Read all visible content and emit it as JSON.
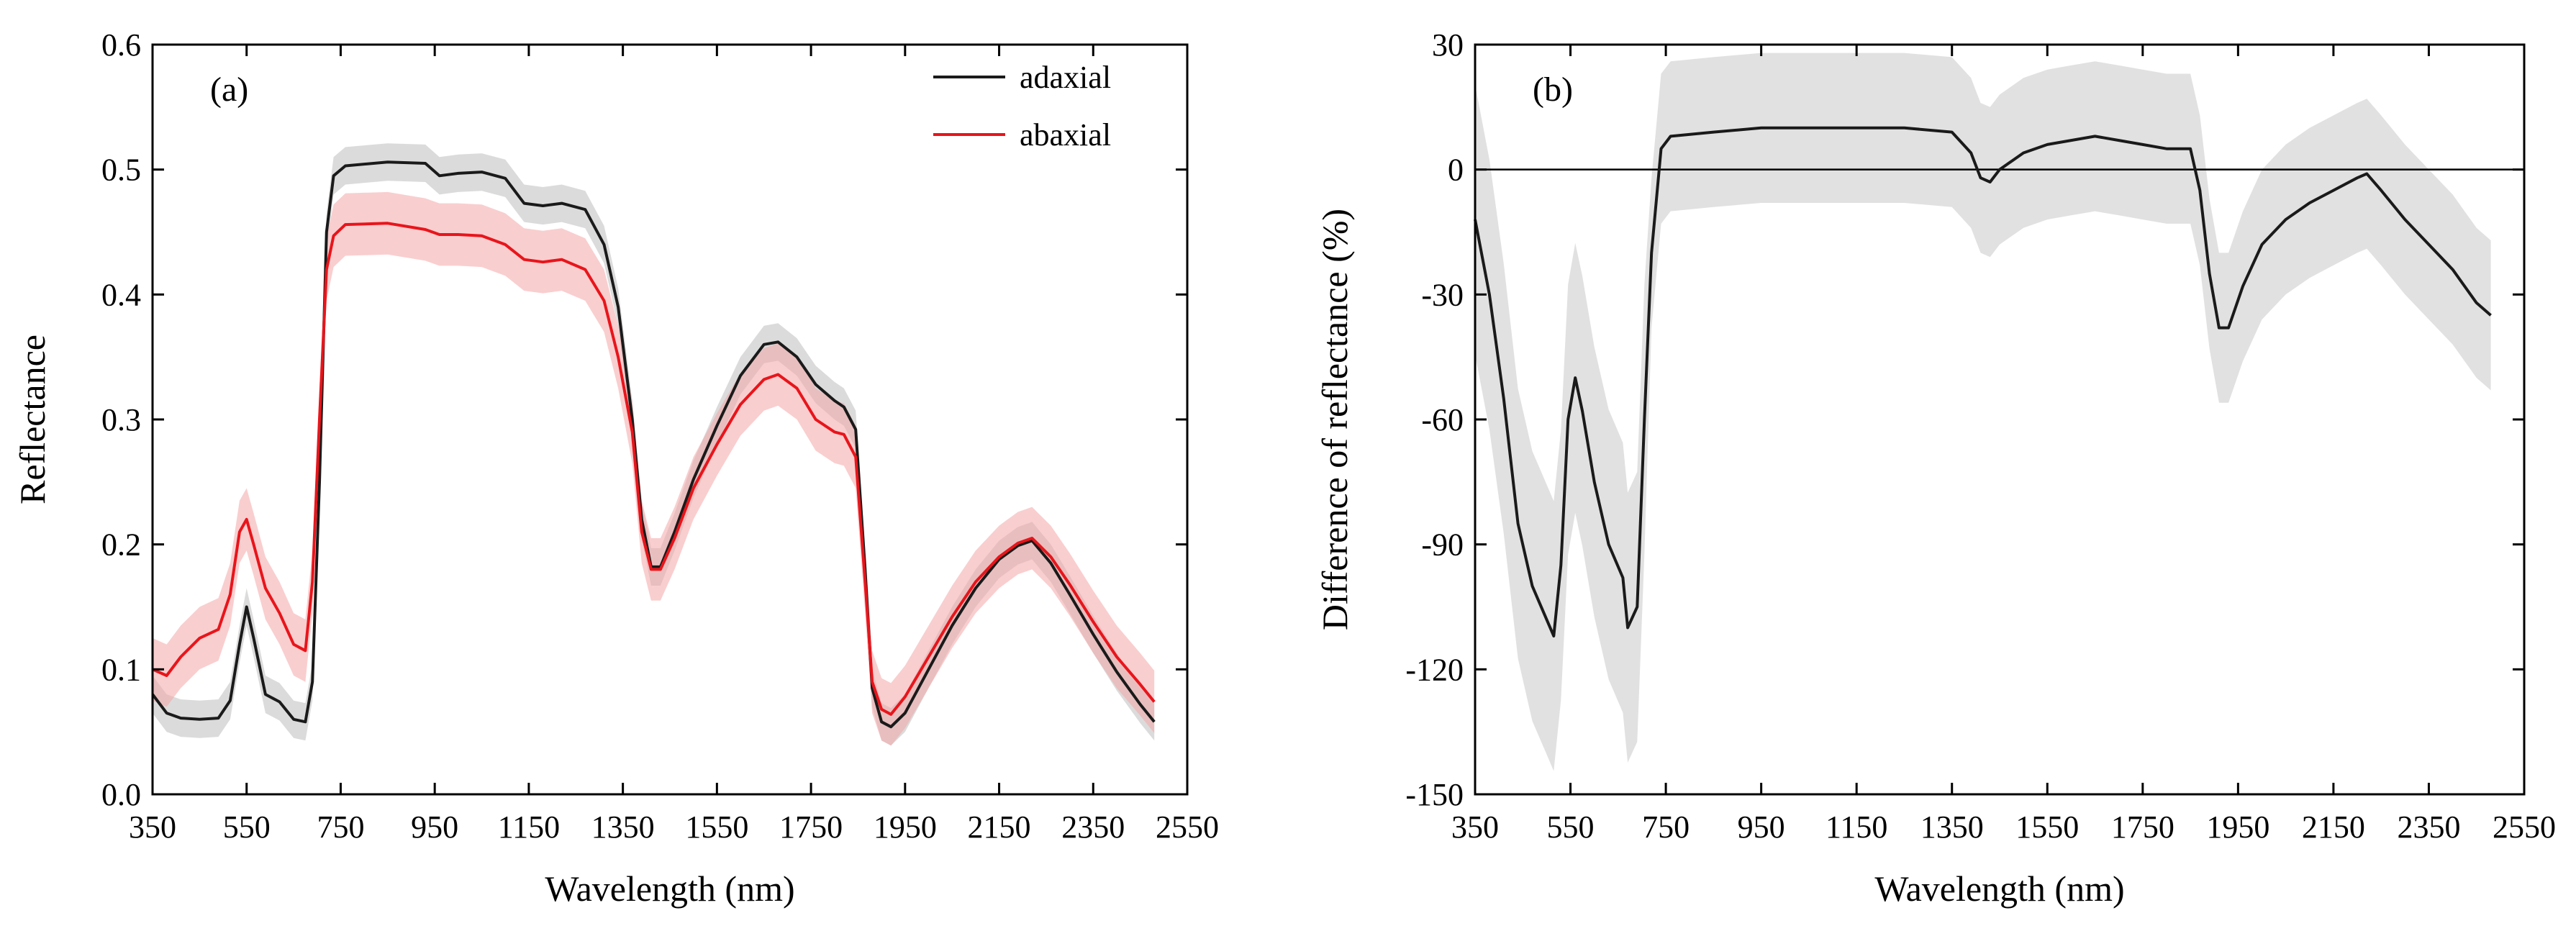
{
  "chart_data": [
    {
      "type": "line",
      "panel_label": "(a)",
      "xlabel": "Wavelength (nm)",
      "ylabel": "Reflectance",
      "xlim": [
        350,
        2550
      ],
      "ylim": [
        0.0,
        0.6
      ],
      "xticks": [
        350,
        550,
        750,
        950,
        1150,
        1350,
        1550,
        1750,
        1950,
        2150,
        2350,
        2550
      ],
      "yticks": [
        "0.0",
        "0.1",
        "0.2",
        "0.3",
        "0.4",
        "0.5",
        "0.6"
      ],
      "legend_position": "top-right",
      "series": [
        {
          "name": "adaxial",
          "color": "#1a1a1a",
          "band_color": "#bdbdbd",
          "points": [
            [
              350,
              0.08
            ],
            [
              380,
              0.065
            ],
            [
              410,
              0.061
            ],
            [
              450,
              0.06
            ],
            [
              490,
              0.061
            ],
            [
              515,
              0.075
            ],
            [
              535,
              0.12
            ],
            [
              550,
              0.15
            ],
            [
              565,
              0.125
            ],
            [
              590,
              0.08
            ],
            [
              620,
              0.074
            ],
            [
              650,
              0.06
            ],
            [
              675,
              0.058
            ],
            [
              690,
              0.09
            ],
            [
              705,
              0.25
            ],
            [
              720,
              0.45
            ],
            [
              735,
              0.495
            ],
            [
              760,
              0.503
            ],
            [
              850,
              0.506
            ],
            [
              930,
              0.505
            ],
            [
              960,
              0.495
            ],
            [
              1000,
              0.497
            ],
            [
              1050,
              0.498
            ],
            [
              1100,
              0.493
            ],
            [
              1140,
              0.473
            ],
            [
              1180,
              0.471
            ],
            [
              1220,
              0.473
            ],
            [
              1270,
              0.468
            ],
            [
              1310,
              0.44
            ],
            [
              1340,
              0.39
            ],
            [
              1370,
              0.3
            ],
            [
              1390,
              0.22
            ],
            [
              1410,
              0.182
            ],
            [
              1430,
              0.182
            ],
            [
              1460,
              0.21
            ],
            [
              1500,
              0.252
            ],
            [
              1550,
              0.295
            ],
            [
              1600,
              0.335
            ],
            [
              1650,
              0.36
            ],
            [
              1680,
              0.362
            ],
            [
              1720,
              0.35
            ],
            [
              1760,
              0.328
            ],
            [
              1800,
              0.315
            ],
            [
              1820,
              0.31
            ],
            [
              1845,
              0.292
            ],
            [
              1865,
              0.18
            ],
            [
              1880,
              0.085
            ],
            [
              1900,
              0.058
            ],
            [
              1920,
              0.054
            ],
            [
              1950,
              0.065
            ],
            [
              2000,
              0.1
            ],
            [
              2050,
              0.135
            ],
            [
              2100,
              0.165
            ],
            [
              2150,
              0.188
            ],
            [
              2190,
              0.199
            ],
            [
              2220,
              0.203
            ],
            [
              2260,
              0.185
            ],
            [
              2300,
              0.16
            ],
            [
              2350,
              0.128
            ],
            [
              2400,
              0.098
            ],
            [
              2450,
              0.072
            ],
            [
              2480,
              0.058
            ]
          ],
          "band": [
            0.015,
            0.012
          ]
        },
        {
          "name": "abaxial",
          "color": "#e8151b",
          "band_color": "#f4a6a8",
          "points": [
            [
              350,
              0.1
            ],
            [
              380,
              0.095
            ],
            [
              410,
              0.11
            ],
            [
              450,
              0.125
            ],
            [
              490,
              0.132
            ],
            [
              515,
              0.16
            ],
            [
              535,
              0.21
            ],
            [
              550,
              0.22
            ],
            [
              565,
              0.2
            ],
            [
              590,
              0.165
            ],
            [
              620,
              0.145
            ],
            [
              650,
              0.12
            ],
            [
              675,
              0.115
            ],
            [
              690,
              0.17
            ],
            [
              705,
              0.3
            ],
            [
              720,
              0.42
            ],
            [
              735,
              0.447
            ],
            [
              760,
              0.456
            ],
            [
              850,
              0.457
            ],
            [
              930,
              0.452
            ],
            [
              960,
              0.448
            ],
            [
              1000,
              0.448
            ],
            [
              1050,
              0.447
            ],
            [
              1100,
              0.44
            ],
            [
              1140,
              0.428
            ],
            [
              1180,
              0.426
            ],
            [
              1220,
              0.428
            ],
            [
              1270,
              0.42
            ],
            [
              1310,
              0.395
            ],
            [
              1340,
              0.35
            ],
            [
              1370,
              0.29
            ],
            [
              1390,
              0.21
            ],
            [
              1410,
              0.18
            ],
            [
              1430,
              0.18
            ],
            [
              1460,
              0.205
            ],
            [
              1500,
              0.245
            ],
            [
              1550,
              0.28
            ],
            [
              1600,
              0.312
            ],
            [
              1650,
              0.332
            ],
            [
              1680,
              0.336
            ],
            [
              1720,
              0.325
            ],
            [
              1760,
              0.3
            ],
            [
              1800,
              0.29
            ],
            [
              1820,
              0.288
            ],
            [
              1845,
              0.27
            ],
            [
              1865,
              0.17
            ],
            [
              1880,
              0.09
            ],
            [
              1900,
              0.068
            ],
            [
              1920,
              0.064
            ],
            [
              1950,
              0.078
            ],
            [
              2000,
              0.11
            ],
            [
              2050,
              0.142
            ],
            [
              2100,
              0.17
            ],
            [
              2150,
              0.19
            ],
            [
              2190,
              0.201
            ],
            [
              2220,
              0.205
            ],
            [
              2260,
              0.19
            ],
            [
              2300,
              0.168
            ],
            [
              2350,
              0.138
            ],
            [
              2400,
              0.11
            ],
            [
              2450,
              0.088
            ],
            [
              2480,
              0.074
            ]
          ],
          "band": [
            0.025,
            0.02
          ]
        }
      ]
    },
    {
      "type": "line",
      "panel_label": "(b)",
      "xlabel": "Wavelength (nm)",
      "ylabel": "Difference of reflectance (%)",
      "xlim": [
        350,
        2550
      ],
      "ylim": [
        -150,
        30
      ],
      "xticks": [
        350,
        550,
        750,
        950,
        1150,
        1350,
        1550,
        1750,
        1950,
        2150,
        2350,
        2550
      ],
      "yticks": [
        "30",
        "0",
        "-30",
        "-60",
        "-90",
        "-120",
        "-150"
      ],
      "reference_line": 0,
      "series": [
        {
          "name": "difference",
          "color": "#1a1a1a",
          "band_color": "#c8c8c8",
          "points": [
            [
              350,
              -12
            ],
            [
              380,
              -30
            ],
            [
              410,
              -55
            ],
            [
              440,
              -85
            ],
            [
              470,
              -100
            ],
            [
              500,
              -108
            ],
            [
              515,
              -112
            ],
            [
              530,
              -95
            ],
            [
              545,
              -60
            ],
            [
              560,
              -50
            ],
            [
              575,
              -58
            ],
            [
              600,
              -75
            ],
            [
              630,
              -90
            ],
            [
              660,
              -98
            ],
            [
              670,
              -110
            ],
            [
              690,
              -105
            ],
            [
              705,
              -60
            ],
            [
              720,
              -20
            ],
            [
              740,
              5
            ],
            [
              760,
              8
            ],
            [
              850,
              9
            ],
            [
              950,
              10
            ],
            [
              1050,
              10
            ],
            [
              1150,
              10
            ],
            [
              1250,
              10
            ],
            [
              1350,
              9
            ],
            [
              1390,
              4
            ],
            [
              1410,
              -2
            ],
            [
              1430,
              -3
            ],
            [
              1450,
              0
            ],
            [
              1500,
              4
            ],
            [
              1550,
              6
            ],
            [
              1600,
              7
            ],
            [
              1650,
              8
            ],
            [
              1700,
              7
            ],
            [
              1750,
              6
            ],
            [
              1800,
              5
            ],
            [
              1850,
              5
            ],
            [
              1870,
              -5
            ],
            [
              1890,
              -25
            ],
            [
              1910,
              -38
            ],
            [
              1930,
              -38
            ],
            [
              1960,
              -28
            ],
            [
              2000,
              -18
            ],
            [
              2050,
              -12
            ],
            [
              2100,
              -8
            ],
            [
              2150,
              -5
            ],
            [
              2200,
              -2
            ],
            [
              2220,
              -1
            ],
            [
              2250,
              -5
            ],
            [
              2300,
              -12
            ],
            [
              2350,
              -18
            ],
            [
              2400,
              -24
            ],
            [
              2450,
              -32
            ],
            [
              2480,
              -35
            ]
          ],
          "band": [
            18,
            6
          ]
        }
      ]
    }
  ]
}
